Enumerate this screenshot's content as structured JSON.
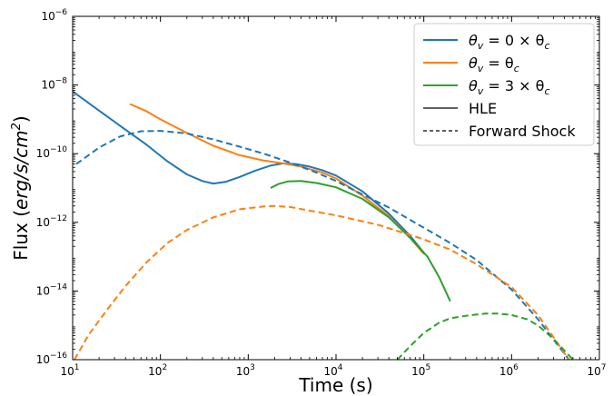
{
  "chart_data": {
    "type": "line",
    "title": "",
    "xlabel": "Time (s)",
    "ylabel_parts": {
      "prefix": "Flux (",
      "unit": "erg/s/cm",
      "power": "2",
      "suffix": ")"
    },
    "xscale": "log",
    "yscale": "log",
    "xlim": [
      10,
      10000000
    ],
    "ylim": [
      1e-16,
      1e-06
    ],
    "grid": false,
    "legend_position": "top-right",
    "x_ticks": [
      {
        "base": "10",
        "exp": "1",
        "value": 10
      },
      {
        "base": "10",
        "exp": "2",
        "value": 100
      },
      {
        "base": "10",
        "exp": "3",
        "value": 1000
      },
      {
        "base": "10",
        "exp": "4",
        "value": 10000
      },
      {
        "base": "10",
        "exp": "5",
        "value": 100000
      },
      {
        "base": "10",
        "exp": "6",
        "value": 1000000
      },
      {
        "base": "10",
        "exp": "7",
        "value": 10000000
      }
    ],
    "y_ticks": [
      {
        "base": "10",
        "exp": "−6",
        "value": 1e-06
      },
      {
        "base": "10",
        "exp": "−8",
        "value": 1e-08
      },
      {
        "base": "10",
        "exp": "−10",
        "value": 1e-10
      },
      {
        "base": "10",
        "exp": "−12",
        "value": 1e-12
      },
      {
        "base": "10",
        "exp": "−14",
        "value": 1e-14
      },
      {
        "base": "10",
        "exp": "−16",
        "value": 1e-16
      }
    ],
    "legend": [
      {
        "theta": "θ",
        "sub": "v",
        "text": " = 0 × θ",
        "sub2": "c",
        "color": "#1f77b4",
        "style": "solid"
      },
      {
        "theta": "θ",
        "sub": "v",
        "text": " = θ",
        "sub2": "c",
        "color": "#ff7f0e",
        "style": "solid"
      },
      {
        "theta": "θ",
        "sub": "v",
        "text": " = 3 × θ",
        "sub2": "c",
        "color": "#2ca02c",
        "style": "solid"
      },
      {
        "theta": "",
        "sub": "",
        "text": "HLE",
        "sub2": "",
        "color": "#000000",
        "style": "solid"
      },
      {
        "theta": "",
        "sub": "",
        "text": "Forward Shock",
        "sub2": "",
        "color": "#000000",
        "style": "dashed"
      }
    ],
    "series": [
      {
        "label": "θv = 0 × θc, HLE",
        "color": "#1f77b4",
        "style": "solid",
        "x": [
          10,
          20,
          40,
          70,
          120,
          200,
          300,
          400,
          550,
          800,
          1200,
          1800,
          2500,
          3500,
          5000,
          7000,
          10000,
          20000,
          40000,
          70000,
          100000
        ],
        "y": [
          6.5e-09,
          1.8e-09,
          5e-10,
          1.8e-10,
          6e-11,
          2.5e-11,
          1.6e-11,
          1.35e-11,
          1.5e-11,
          2.1e-11,
          3.2e-11,
          4.5e-11,
          5.2e-11,
          5e-11,
          4.2e-11,
          3.3e-11,
          2.3e-11,
          8e-12,
          1.8e-12,
          4e-13,
          1.3e-13
        ]
      },
      {
        "label": "θv = θc, HLE",
        "color": "#ff7f0e",
        "style": "solid",
        "x": [
          45,
          70,
          100,
          200,
          400,
          800,
          1500,
          2500,
          4000,
          7000,
          10000,
          20000,
          40000,
          70000,
          100000
        ],
        "y": [
          2.8e-09,
          1.7e-09,
          1e-09,
          4e-10,
          1.7e-10,
          9e-11,
          6.3e-11,
          5.2e-11,
          4.2e-11,
          2.8e-11,
          1.9e-11,
          6e-12,
          1.5e-12,
          3.5e-13,
          1.2e-13
        ]
      },
      {
        "label": "θv = 3 × θc, HLE",
        "color": "#2ca02c",
        "style": "solid",
        "x": [
          1800,
          2200,
          2800,
          4000,
          6000,
          10000,
          20000,
          40000,
          70000,
          110000,
          150000,
          200000
        ],
        "y": [
          1e-11,
          1.3e-11,
          1.55e-11,
          1.6e-11,
          1.4e-11,
          1.05e-11,
          4.8e-12,
          1.4e-12,
          3.5e-13,
          1e-13,
          2.5e-14,
          5e-15
        ]
      },
      {
        "label": "θv = 0 × θc, Forward Shock",
        "color": "#1f77b4",
        "style": "dashed",
        "x": [
          11,
          20,
          35,
          60,
          100,
          200,
          400,
          800,
          1500,
          3000,
          6000,
          10000,
          20000,
          40000,
          100000,
          200000,
          400000,
          1000000,
          2000000,
          4500000
        ],
        "y": [
          5e-11,
          1.5e-10,
          3.2e-10,
          4.5e-10,
          4.6e-10,
          3.9e-10,
          2.6e-10,
          1.6e-10,
          1e-10,
          5.5e-11,
          2.8e-11,
          1.6e-11,
          6.5e-12,
          2.7e-12,
          7e-13,
          2.5e-13,
          8e-14,
          1.1e-14,
          1.5e-15,
          1e-16
        ]
      },
      {
        "label": "θv = θc, Forward Shock",
        "color": "#ff7f0e",
        "style": "dashed",
        "x": [
          10.5,
          15,
          25,
          40,
          70,
          120,
          200,
          400,
          800,
          1500,
          2000,
          3000,
          5000,
          10000,
          30000,
          100000,
          200000,
          400000,
          1000000,
          2000000,
          4500000
        ],
        "y": [
          1e-16,
          5e-16,
          3e-15,
          1.4e-14,
          7e-14,
          2.5e-13,
          6e-13,
          1.4e-12,
          2.4e-12,
          2.9e-12,
          3e-12,
          2.8e-12,
          2.2e-12,
          1.6e-12,
          8.5e-13,
          3.2e-13,
          1.6e-13,
          6e-14,
          1.3e-14,
          2e-15,
          1e-16
        ]
      },
      {
        "label": "θv = 3 × θc, Forward Shock",
        "color": "#2ca02c",
        "style": "dashed",
        "x": [
          50000,
          70000,
          100000,
          150000,
          200000,
          300000,
          500000,
          700000,
          1000000,
          1500000,
          2000000,
          3000000,
          5000000
        ],
        "y": [
          1e-16,
          2.5e-16,
          6e-16,
          1.2e-15,
          1.6e-15,
          1.9e-15,
          2.2e-15,
          2.2e-15,
          2e-15,
          1.5e-15,
          1e-15,
          4e-16,
          1e-16
        ]
      }
    ]
  }
}
